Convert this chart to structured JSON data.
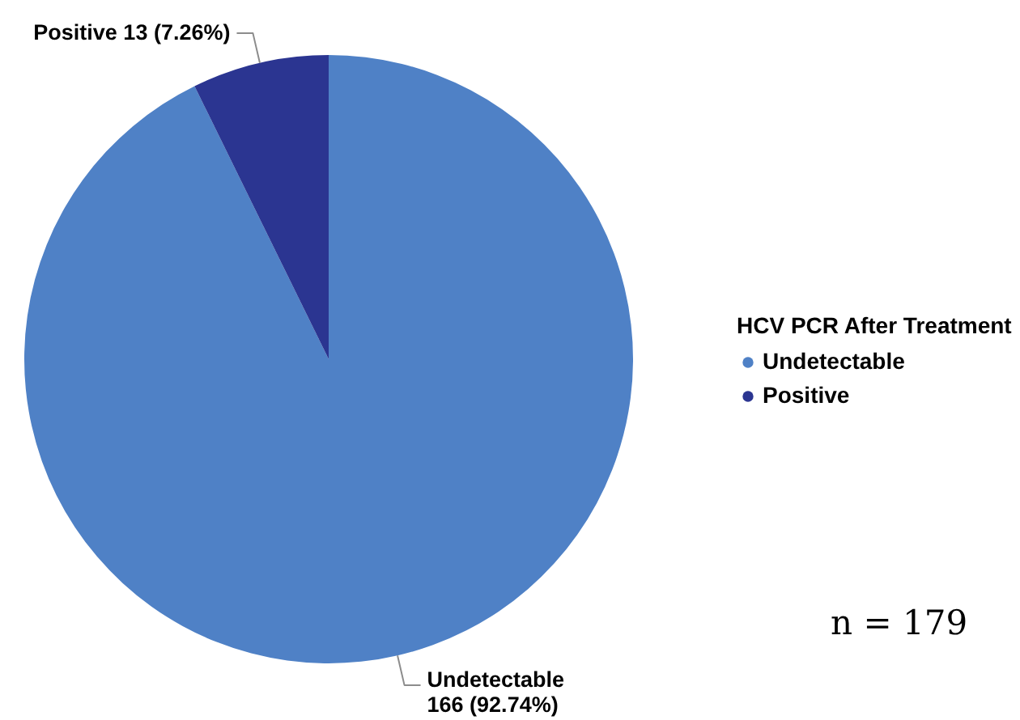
{
  "chart_data": {
    "type": "pie",
    "categories": [
      "Undetectable",
      "Positive"
    ],
    "values": [
      166,
      13
    ],
    "colors": [
      "#4f81c6",
      "#2b3591"
    ],
    "value_labels": [
      "166 (92.74%)",
      "13 (7.26%)"
    ],
    "legend_title": "HCV PCR After Treatment",
    "legend": "right",
    "annotations": [
      "n = 179"
    ]
  }
}
